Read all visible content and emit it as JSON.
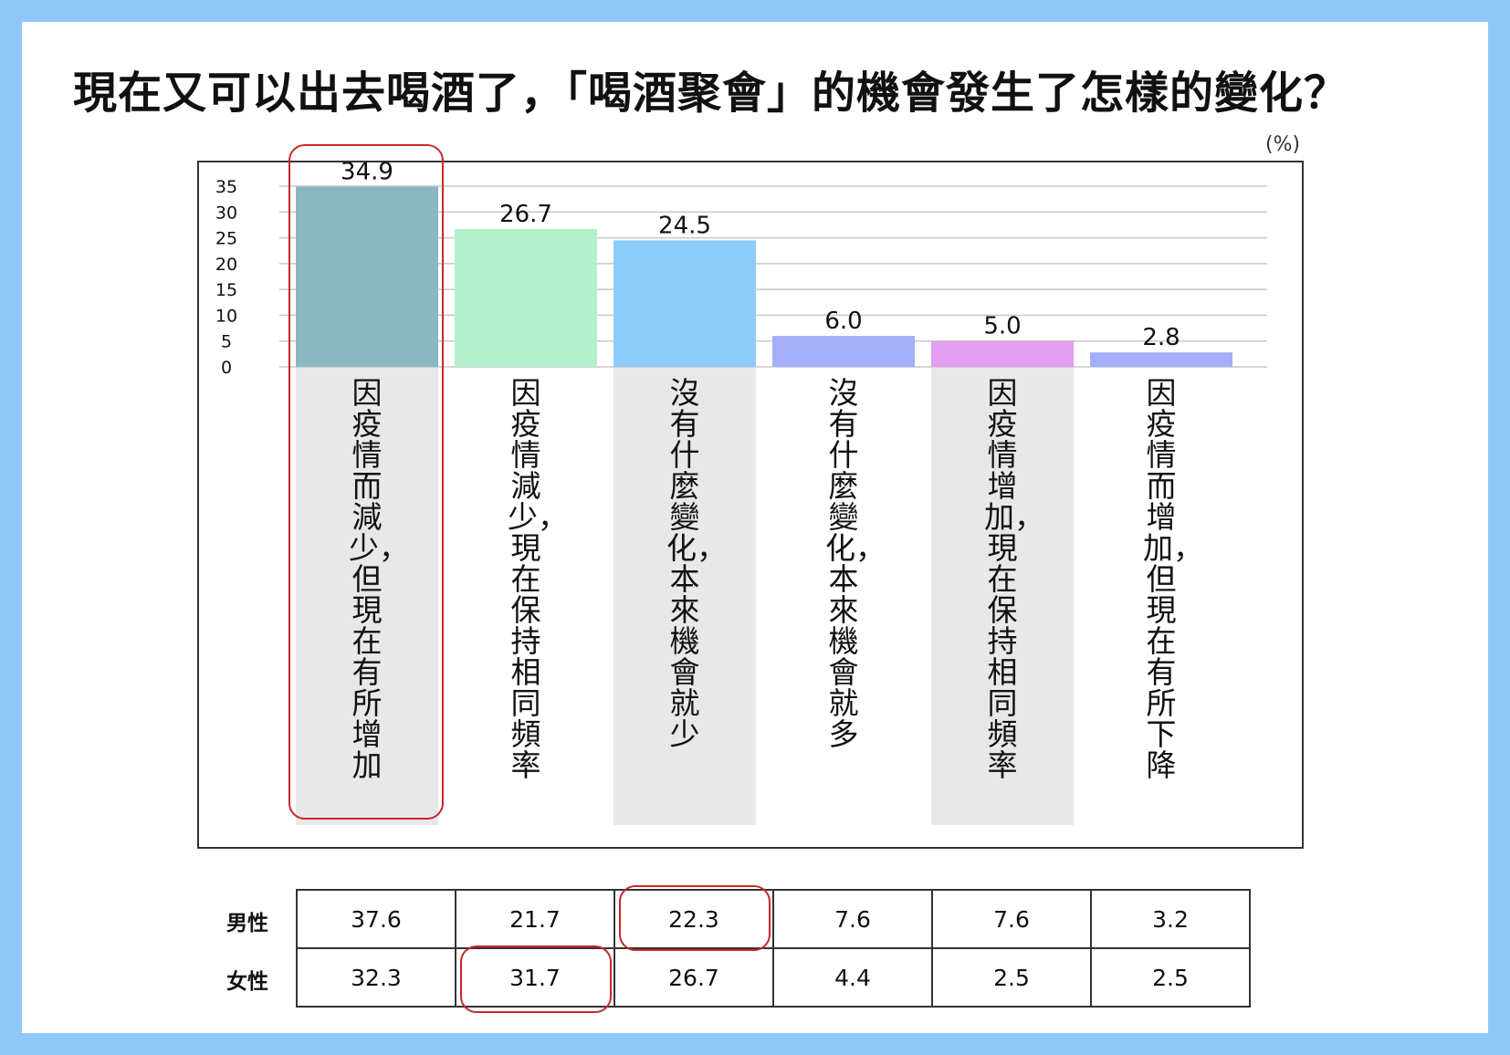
{
  "title": "現在又可以出去喝酒了，「喝酒聚會」的機會發生了怎樣的變化？",
  "unit": "(%)",
  "colors": {
    "background": "#8fc8f8",
    "highlight": "#c62828",
    "label_band": "#e8e8e8"
  },
  "chart_data": {
    "type": "bar",
    "categories": [
      "因疫情而減少，但現在有所增加",
      "因疫情減少，現在保持相同頻率",
      "沒有什麼變化，本來機會就少",
      "沒有什麼變化，本來機會就多",
      "因疫情增加，現在保持相同頻率",
      "因疫情而增加，但現在有所下降"
    ],
    "values": [
      34.9,
      26.7,
      24.5,
      6.0,
      5.0,
      2.8
    ],
    "value_labels": [
      "34.9",
      "26.7",
      "24.5",
      "6.0",
      "5.0",
      "2.8"
    ],
    "bar_colors": [
      "#89b8c0",
      "#b5f0cc",
      "#8dcbfa",
      "#a5aef8",
      "#e29ef0",
      "#a5aef8"
    ],
    "ylim": [
      0,
      35
    ],
    "yticks": [
      "0",
      "5",
      "10",
      "15",
      "20",
      "25",
      "30",
      "35"
    ],
    "grid": true
  },
  "table": {
    "rows": [
      {
        "label": "男性",
        "values": [
          "37.6",
          "21.7",
          "22.3",
          "7.6",
          "7.6",
          "3.2"
        ]
      },
      {
        "label": "女性",
        "values": [
          "32.3",
          "31.7",
          "26.7",
          "4.4",
          "2.5",
          "2.5"
        ]
      }
    ]
  }
}
